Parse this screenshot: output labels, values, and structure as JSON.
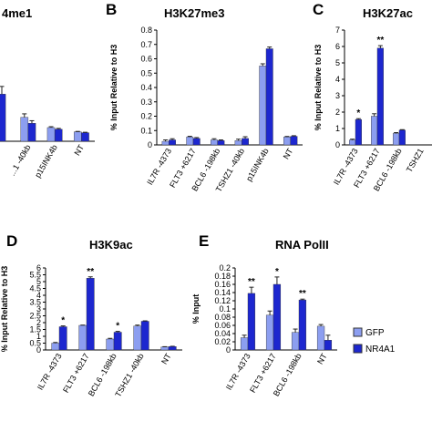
{
  "colors": {
    "GFP": "#8c9ef0",
    "NR4A1": "#1d27cf",
    "error": "#222222"
  },
  "legend": [
    {
      "name": "GFP",
      "color": "#8c9ef0"
    },
    {
      "name": "NR4A1",
      "color": "#1d27cf"
    }
  ],
  "chart_data": [
    {
      "id": "A",
      "type": "bar",
      "panel_letter": "",
      "title": "4me1",
      "ylabel": "",
      "ylim": [
        0,
        1
      ],
      "categories": [
        "...1 -40kb",
        "p15INK4b",
        "NT"
      ],
      "series": [
        {
          "name": "GFP",
          "values": [
            0.28,
            0.16,
            0.11
          ],
          "errors": [
            0.04,
            0.01,
            0.005
          ]
        },
        {
          "name": "NR4A1",
          "values": [
            0.21,
            0.14,
            0.1
          ],
          "errors": [
            0.03,
            0.01,
            0.005
          ]
        }
      ],
      "partial_bar": {
        "value": 0.55,
        "error": 0.09
      },
      "significance": []
    },
    {
      "id": "B",
      "type": "bar",
      "panel_letter": "B",
      "title": "H3K27me3",
      "ylabel": "% Input Relative to H3",
      "ylim": [
        0,
        0.8
      ],
      "yticks": [
        "0",
        "0.1",
        "0.2",
        "0.3",
        "0.4",
        "0.5",
        "0.6",
        "0.7",
        "0.8"
      ],
      "categories": [
        "IL7R -4373",
        "FLT3 +6217",
        "BCL6 -198kb",
        "TSHZ1 -40kb",
        "p15INK4b",
        "NT"
      ],
      "series": [
        {
          "name": "GFP",
          "values": [
            0.025,
            0.055,
            0.035,
            0.03,
            0.55,
            0.055
          ],
          "errors": [
            0.01,
            0.005,
            0.008,
            0.01,
            0.015,
            0.004
          ]
        },
        {
          "name": "NR4A1",
          "values": [
            0.035,
            0.045,
            0.03,
            0.045,
            0.67,
            0.06
          ],
          "errors": [
            0.008,
            0.006,
            0.005,
            0.012,
            0.012,
            0.004
          ]
        }
      ],
      "significance": []
    },
    {
      "id": "C",
      "type": "bar",
      "panel_letter": "C",
      "title": "H3K27ac",
      "ylabel": "% Input Relative to H3",
      "ylim": [
        0,
        7
      ],
      "yticks": [
        "0",
        "1",
        "2",
        "3",
        "4",
        "5",
        "6",
        "7"
      ],
      "categories": [
        "IL7R -4373",
        "FLT3 +6217",
        "BCL6 -198kb",
        "TSHZ1"
      ],
      "series": [
        {
          "name": "GFP",
          "values": [
            0.3,
            1.75,
            0.7,
            0.0
          ],
          "errors": [
            0.05,
            0.15,
            0.05,
            0
          ]
        },
        {
          "name": "NR4A1",
          "values": [
            1.55,
            5.9,
            0.9,
            0.0
          ],
          "errors": [
            0.05,
            0.15,
            0.03,
            0
          ]
        }
      ],
      "significance": [
        {
          "category": 0,
          "label": "*"
        },
        {
          "category": 1,
          "label": "**"
        }
      ]
    },
    {
      "id": "D",
      "type": "bar",
      "panel_letter": "D",
      "title": "H3K9ac",
      "ylabel": "% Input Relative to H3",
      "ylim": [
        0,
        6
      ],
      "yticks": [
        "0",
        "0.5",
        "1",
        "1.5",
        "2",
        "2.5",
        "3",
        "3.5",
        "4",
        "4.5",
        "5",
        "5.5",
        "6"
      ],
      "categories": [
        "IL7R -4373",
        "FLT3 +6217",
        "BCL6 -198kb",
        "TSHZ1 -40kb",
        "NT"
      ],
      "series": [
        {
          "name": "GFP",
          "values": [
            0.5,
            1.8,
            0.8,
            1.75,
            0.22
          ],
          "errors": [
            0.05,
            0.02,
            0.05,
            0.07,
            0.02
          ]
        },
        {
          "name": "NR4A1",
          "values": [
            1.7,
            5.25,
            1.3,
            2.1,
            0.25
          ],
          "errors": [
            0.06,
            0.1,
            0.06,
            0.03,
            0.02
          ]
        }
      ],
      "significance": [
        {
          "category": 0,
          "label": "*"
        },
        {
          "category": 1,
          "label": "**"
        },
        {
          "category": 2,
          "label": "*"
        }
      ]
    },
    {
      "id": "E",
      "type": "bar",
      "panel_letter": "E",
      "title": "RNA PolII",
      "ylabel": "% Input",
      "ylim": [
        0,
        0.2
      ],
      "yticks": [
        "0",
        "0.02",
        "0.04",
        "0.06",
        "0.08",
        "0.1",
        "0.12",
        "0.14",
        "0.16",
        "0.18",
        "0.2"
      ],
      "categories": [
        "IL7R -4373",
        "FLT3 +6217",
        "BCL6 -198kb",
        "NT"
      ],
      "series": [
        {
          "name": "GFP",
          "values": [
            0.03,
            0.085,
            0.043,
            0.058
          ],
          "errors": [
            0.006,
            0.01,
            0.008,
            0.004
          ]
        },
        {
          "name": "NR4A1",
          "values": [
            0.138,
            0.16,
            0.122,
            0.024
          ],
          "errors": [
            0.015,
            0.018,
            0.002,
            0.012
          ]
        }
      ],
      "significance": [
        {
          "category": 0,
          "label": "**"
        },
        {
          "category": 1,
          "label": "*"
        },
        {
          "category": 2,
          "label": "**"
        }
      ]
    }
  ]
}
